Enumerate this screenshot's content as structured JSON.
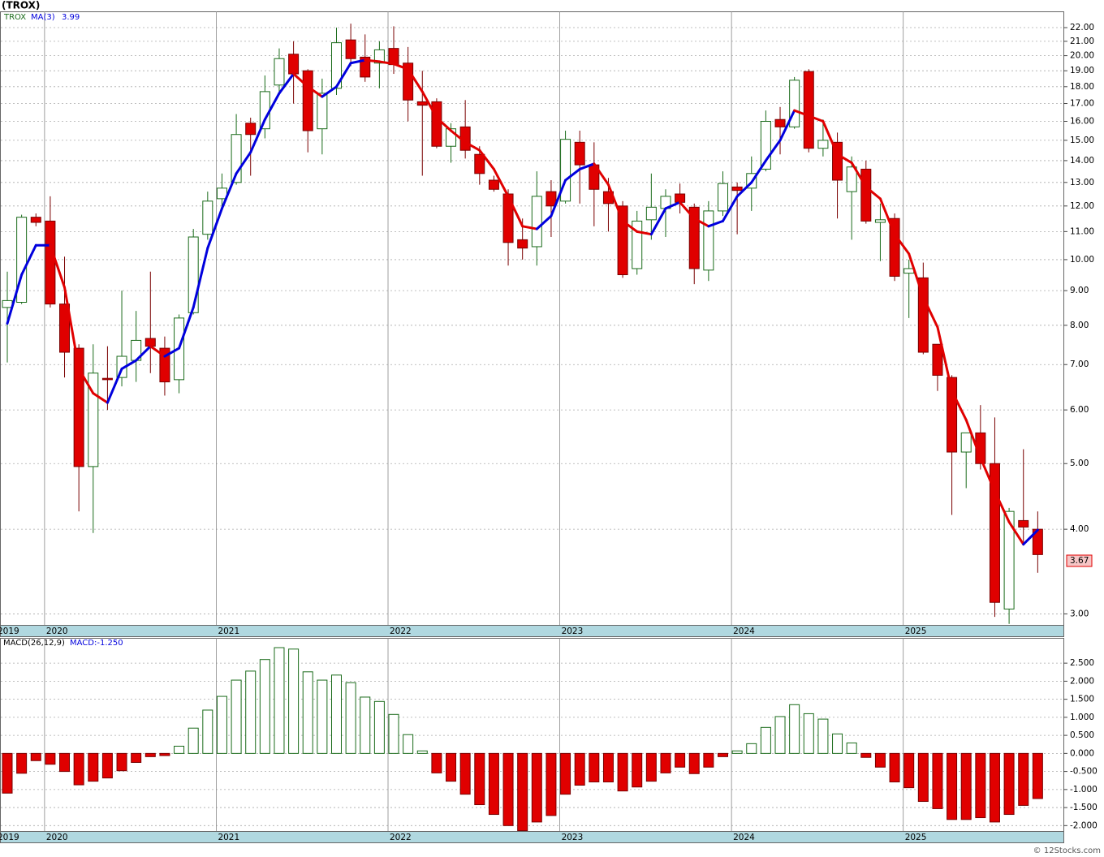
{
  "chart_data": [
    {
      "type": "candlestick",
      "title": "(TROX)",
      "log_scale": true,
      "grid": true,
      "series": [
        {
          "name": "TROX",
          "up_color": "#1a6b1a",
          "down_color": "#e00000",
          "open": [
            8.5,
            8.65,
            11.55,
            11.4,
            8.6,
            7.4,
            4.95,
            6.68,
            6.7,
            7.1,
            7.65,
            7.4,
            6.65,
            8.35,
            10.9,
            12.3,
            13.0,
            15.9,
            15.6,
            18.1,
            20.1,
            19.0,
            15.6,
            17.9,
            21.1,
            19.9,
            19.5,
            20.5,
            19.5,
            17.1,
            17.1,
            14.7,
            15.7,
            14.3,
            13.1,
            12.5,
            10.7,
            10.45,
            12.6,
            12.2,
            14.9,
            13.8,
            12.6,
            12.0,
            9.7,
            11.45,
            11.9,
            12.5,
            11.95,
            9.65,
            11.8,
            12.8,
            12.75,
            13.6,
            16.1,
            15.7,
            18.95,
            14.6,
            14.9,
            12.6,
            13.6,
            11.35,
            11.5,
            9.55,
            9.4,
            7.5,
            6.7,
            5.2,
            5.55,
            5.0,
            3.05,
            4.12,
            4.0
          ],
          "high": [
            9.6,
            11.65,
            11.7,
            12.4,
            10.1,
            7.5,
            7.5,
            7.45,
            9.0,
            8.4,
            9.6,
            7.7,
            8.3,
            11.1,
            12.6,
            13.4,
            16.4,
            16.2,
            18.7,
            20.5,
            21.0,
            19.1,
            18.5,
            22.0,
            22.3,
            21.5,
            21.0,
            22.1,
            20.6,
            19.0,
            17.3,
            15.9,
            17.2,
            14.7,
            13.3,
            12.7,
            11.5,
            13.5,
            13.1,
            15.5,
            15.5,
            14.9,
            13.2,
            12.2,
            11.8,
            13.4,
            12.7,
            12.95,
            12.1,
            12.2,
            13.5,
            13.0,
            14.2,
            16.6,
            16.8,
            18.6,
            19.1,
            16.1,
            15.4,
            14.2,
            14.0,
            12.1,
            11.7,
            10.0,
            9.9,
            7.5,
            6.75,
            5.55,
            6.1,
            5.85,
            4.3,
            5.25,
            4.25
          ],
          "low": [
            7.05,
            8.6,
            11.2,
            8.5,
            6.7,
            4.25,
            3.95,
            6.0,
            6.5,
            6.6,
            6.8,
            6.3,
            6.35,
            8.3,
            10.7,
            11.8,
            12.9,
            13.3,
            15.1,
            17.5,
            17.0,
            14.4,
            14.3,
            17.5,
            19.3,
            18.3,
            17.9,
            18.8,
            16.0,
            13.3,
            14.6,
            13.9,
            14.1,
            12.9,
            12.6,
            9.8,
            10.0,
            9.8,
            10.8,
            12.1,
            12.1,
            11.2,
            11.0,
            9.4,
            9.5,
            10.7,
            10.8,
            11.7,
            9.2,
            9.3,
            11.6,
            10.9,
            11.8,
            13.5,
            14.3,
            15.6,
            14.4,
            14.2,
            11.5,
            10.7,
            11.3,
            9.95,
            9.3,
            8.2,
            7.25,
            6.4,
            4.2,
            4.6,
            4.9,
            2.97,
            2.9,
            3.8,
            3.45
          ],
          "close": [
            8.7,
            11.55,
            11.35,
            8.6,
            7.3,
            4.95,
            6.8,
            6.65,
            7.2,
            7.6,
            7.45,
            6.6,
            8.2,
            10.8,
            12.2,
            12.75,
            15.3,
            15.3,
            17.7,
            19.8,
            18.8,
            15.5,
            17.6,
            20.9,
            19.8,
            18.6,
            20.4,
            19.4,
            17.2,
            16.9,
            14.7,
            15.6,
            14.5,
            13.4,
            12.7,
            10.6,
            10.4,
            12.4,
            12.0,
            15.05,
            13.8,
            12.7,
            12.1,
            9.5,
            11.4,
            11.95,
            12.4,
            12.15,
            9.7,
            11.8,
            12.95,
            12.65,
            13.4,
            16.0,
            15.7,
            18.4,
            14.6,
            15.0,
            13.1,
            13.7,
            11.4,
            11.45,
            9.45,
            9.7,
            7.3,
            6.75,
            5.2,
            5.55,
            5.0,
            3.12,
            4.25,
            4.03,
            3.67
          ]
        },
        {
          "name": "MA(3)",
          "up_color": "#0000dd",
          "down_color": "#e00000",
          "values": [
            8.05,
            9.5,
            10.5,
            10.5,
            9.1,
            6.9,
            6.35,
            6.15,
            6.9,
            7.1,
            7.45,
            7.2,
            7.4,
            8.5,
            10.4,
            11.9,
            13.4,
            14.4,
            16.1,
            17.6,
            18.8,
            18.0,
            17.4,
            18.0,
            19.5,
            19.7,
            19.6,
            19.45,
            19.1,
            17.7,
            16.2,
            15.5,
            14.9,
            14.5,
            13.6,
            12.4,
            11.2,
            11.1,
            11.6,
            13.1,
            13.6,
            13.85,
            12.9,
            11.4,
            11.0,
            10.9,
            11.9,
            12.15,
            11.5,
            11.2,
            11.4,
            12.4,
            13.0,
            14.0,
            15.0,
            16.6,
            16.3,
            16.0,
            14.3,
            13.9,
            12.8,
            12.3,
            10.9,
            10.2,
            8.8,
            7.95,
            6.4,
            5.8,
            5.1,
            4.55,
            4.1,
            3.8,
            3.99
          ]
        }
      ],
      "ylim": [
        2.89,
        23.25
      ],
      "yticks": [
        {
          "value": 3,
          "label": "3.00"
        },
        {
          "value": 4,
          "label": "4.00"
        },
        {
          "value": 5,
          "label": "5.00"
        },
        {
          "value": 6,
          "label": "6.00"
        },
        {
          "value": 7,
          "label": "7.00"
        },
        {
          "value": 8,
          "label": "8.00"
        },
        {
          "value": 9,
          "label": "9.00"
        },
        {
          "value": 10,
          "label": "10.00"
        },
        {
          "value": 11,
          "label": "11.00"
        },
        {
          "value": 12,
          "label": "12.00"
        },
        {
          "value": 13,
          "label": "13.00"
        },
        {
          "value": 14,
          "label": "14.00"
        },
        {
          "value": 15,
          "label": "15.00"
        },
        {
          "value": 16,
          "label": "16.00"
        },
        {
          "value": 17,
          "label": "17.00"
        },
        {
          "value": 18,
          "label": "18.00"
        },
        {
          "value": 19,
          "label": "19.00"
        },
        {
          "value": 20,
          "label": "20.00"
        },
        {
          "value": 21,
          "label": "21.00"
        },
        {
          "value": 22,
          "label": "22.00"
        }
      ],
      "xticks": [
        {
          "value": -0.4,
          "label": "2019"
        },
        {
          "value": 3,
          "label": "2020"
        },
        {
          "value": 15,
          "label": "2021"
        },
        {
          "value": 27,
          "label": "2022"
        },
        {
          "value": 39,
          "label": "2023"
        },
        {
          "value": 51,
          "label": "2024"
        },
        {
          "value": 63,
          "label": "2025"
        }
      ]
    },
    {
      "type": "bar",
      "grid": true,
      "series": [
        {
          "name": "MACD(26,12,9)",
          "up_color": "#1a6b1a",
          "down_color": "#e00000",
          "values": [
            -1.1,
            -0.55,
            -0.2,
            -0.3,
            -0.5,
            -0.87,
            -0.77,
            -0.68,
            -0.48,
            -0.25,
            -0.09,
            -0.06,
            0.2,
            0.7,
            1.2,
            1.58,
            2.03,
            2.28,
            2.6,
            2.93,
            2.89,
            2.26,
            2.03,
            2.17,
            1.96,
            1.56,
            1.44,
            1.08,
            0.52,
            0.07,
            -0.54,
            -0.77,
            -1.13,
            -1.42,
            -1.69,
            -2.0,
            -2.14,
            -1.9,
            -1.72,
            -1.13,
            -0.88,
            -0.79,
            -0.79,
            -1.04,
            -0.93,
            -0.77,
            -0.54,
            -0.38,
            -0.56,
            -0.38,
            -0.09,
            0.07,
            0.27,
            0.72,
            1.02,
            1.35,
            1.1,
            0.95,
            0.54,
            0.29,
            -0.11,
            -0.38,
            -0.79,
            -0.95,
            -1.33,
            -1.53,
            -1.83,
            -1.83,
            -1.78,
            -1.9,
            -1.69,
            -1.44,
            -1.25
          ]
        }
      ],
      "annotation": "MACD:-1.250",
      "ylim": [
        -2.15,
        3.2
      ],
      "yticks": [
        {
          "value": 2.5,
          "label": "2.500"
        },
        {
          "value": 2,
          "label": "2.000"
        },
        {
          "value": 1.5,
          "label": "1.500"
        },
        {
          "value": 1,
          "label": "1.000"
        },
        {
          "value": 0.5,
          "label": "0.500"
        },
        {
          "value": 0,
          "label": "0.000"
        },
        {
          "value": -0.5,
          "label": "-0.500"
        },
        {
          "value": -1,
          "label": "-1.000"
        },
        {
          "value": -1.5,
          "label": "-1.500"
        },
        {
          "value": -2,
          "label": "-2.000"
        }
      ],
      "xticks": [
        {
          "value": -0.4,
          "label": "2019"
        },
        {
          "value": 3,
          "label": "2020"
        },
        {
          "value": 15,
          "label": "2021"
        },
        {
          "value": 27,
          "label": "2022"
        },
        {
          "value": 39,
          "label": "2023"
        },
        {
          "value": 51,
          "label": "2024"
        },
        {
          "value": 63,
          "label": "2025"
        }
      ]
    }
  ],
  "footer": "© 12Stocks.com"
}
